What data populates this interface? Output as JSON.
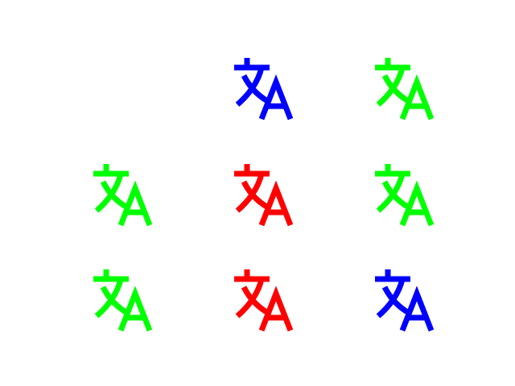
{
  "icon": "translate-icon",
  "palette": {
    "green": "#00ff00",
    "blue": "#0000ff",
    "red": "#ff0000"
  },
  "grid": [
    [
      null,
      "blue",
      "green"
    ],
    [
      "green",
      "red",
      "green"
    ],
    [
      "green",
      "red",
      "blue"
    ]
  ]
}
